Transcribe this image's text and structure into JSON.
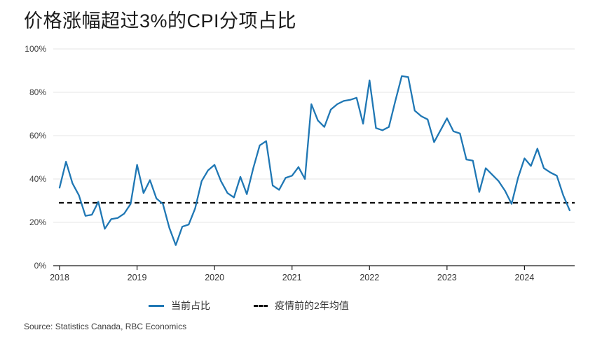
{
  "title": "价格涨幅超过3%的CPI分项占比",
  "source": "Source: Statistics Canada, RBC Economics",
  "colors": {
    "line": "#1f77b4",
    "baseline": "#111111",
    "grid": "#e6e6e6",
    "axis": "#1a1a1a",
    "tick_text": "#404040"
  },
  "legend": {
    "items": [
      {
        "label": "当前占比",
        "type": "solid-line"
      },
      {
        "label": "疫情前的2年均值",
        "type": "dashed-line"
      }
    ]
  },
  "axes": {
    "y_ticks": [
      {
        "value": 0,
        "label": "0%"
      },
      {
        "value": 20,
        "label": "20%"
      },
      {
        "value": 40,
        "label": "40%"
      },
      {
        "value": 60,
        "label": "60%"
      },
      {
        "value": 80,
        "label": "80%"
      },
      {
        "value": 100,
        "label": "100%"
      }
    ],
    "x_ticks": [
      {
        "label": "2018",
        "month_index": 0
      },
      {
        "label": "2019",
        "month_index": 12
      },
      {
        "label": "2020",
        "month_index": 24
      },
      {
        "label": "2021",
        "month_index": 36
      },
      {
        "label": "2022",
        "month_index": 48
      },
      {
        "label": "2023",
        "month_index": 60
      },
      {
        "label": "2024",
        "month_index": 72
      }
    ]
  },
  "chart_data": {
    "type": "line",
    "title": "价格涨幅超过3%的CPI分项占比",
    "x_start": "2018-01",
    "x_freq": "monthly",
    "xlabel": "",
    "ylabel": "",
    "y_unit": "%",
    "ylim": [
      0,
      100
    ],
    "grid": "horizontal",
    "legend_position": "bottom-center",
    "series": [
      {
        "name": "当前占比",
        "style": "solid",
        "color": "#1f77b4",
        "values": [
          36,
          48,
          38,
          32.5,
          23,
          23.5,
          29.5,
          17,
          21.5,
          22,
          24,
          28.5,
          46.5,
          33.5,
          39.5,
          31,
          28.5,
          17.5,
          9.5,
          18,
          19,
          26.5,
          39,
          44,
          46.5,
          39,
          33.5,
          31.5,
          41,
          33,
          45,
          55.5,
          57.5,
          37,
          35,
          40.5,
          41.5,
          45.5,
          40,
          74.5,
          67,
          64,
          72,
          74.5,
          76,
          76.5,
          77.5,
          65.5,
          85.5,
          63.5,
          62.5,
          64,
          76,
          87.5,
          87,
          71.5,
          69,
          67.5,
          57,
          62.5,
          68,
          62,
          61,
          49,
          48.5,
          34,
          45,
          42,
          39,
          34.5,
          28.5,
          40.5,
          49.5,
          46,
          54,
          45,
          43,
          41.5,
          32.5,
          25.5
        ]
      },
      {
        "name": "疫情前的2年均值",
        "style": "dashed",
        "color": "#111111",
        "baseline_value": 29
      }
    ]
  }
}
